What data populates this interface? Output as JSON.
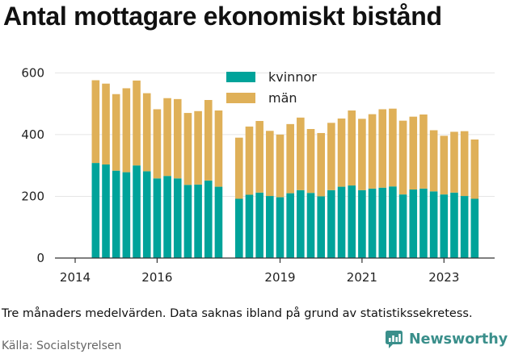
{
  "title": "Antal mottagare ekonomiskt bistånd",
  "note": "Tre månaders medelvärden. Data saknas ibland på grund av statistikssekretess.",
  "source": "Källa: Socialstyrelsen",
  "brand": "Newsworthy",
  "colors": {
    "kvinnor": "#00a39a",
    "man": "#dfb058",
    "axis": "#333333",
    "grid": "#e5e5e5"
  },
  "chart_data": {
    "type": "bar",
    "stacked": true,
    "x_ticks": [
      "2014",
      "2016",
      "2019",
      "2021",
      "2023"
    ],
    "y_ticks": [
      "0",
      "200",
      "400",
      "600"
    ],
    "ylim": [
      0,
      640
    ],
    "legend": {
      "position": "top-center",
      "entries": [
        "kvinnor",
        "män"
      ]
    },
    "groups": [
      {
        "start": "2014-07",
        "kvinnor": [
          308,
          303,
          283,
          278,
          300,
          281,
          258,
          266,
          258,
          237,
          238,
          251,
          231
        ],
        "totals": [
          576,
          565,
          531,
          550,
          575,
          534,
          482,
          518,
          515,
          470,
          476,
          512,
          478
        ]
      },
      {
        "start": "2018-01",
        "kvinnor": [
          192,
          205,
          212,
          201,
          197,
          210,
          220,
          211,
          200,
          220,
          231,
          235,
          220,
          225,
          228,
          232,
          206,
          222,
          225,
          216,
          206,
          212,
          201,
          192
        ],
        "totals": [
          390,
          426,
          444,
          412,
          400,
          434,
          455,
          418,
          405,
          438,
          452,
          478,
          451,
          466,
          482,
          484,
          445,
          458,
          465,
          414,
          396,
          409,
          411,
          384
        ]
      }
    ],
    "series": [
      {
        "name": "kvinnor",
        "color": "#00a39a"
      },
      {
        "name": "män",
        "color": "#dfb058"
      }
    ]
  }
}
